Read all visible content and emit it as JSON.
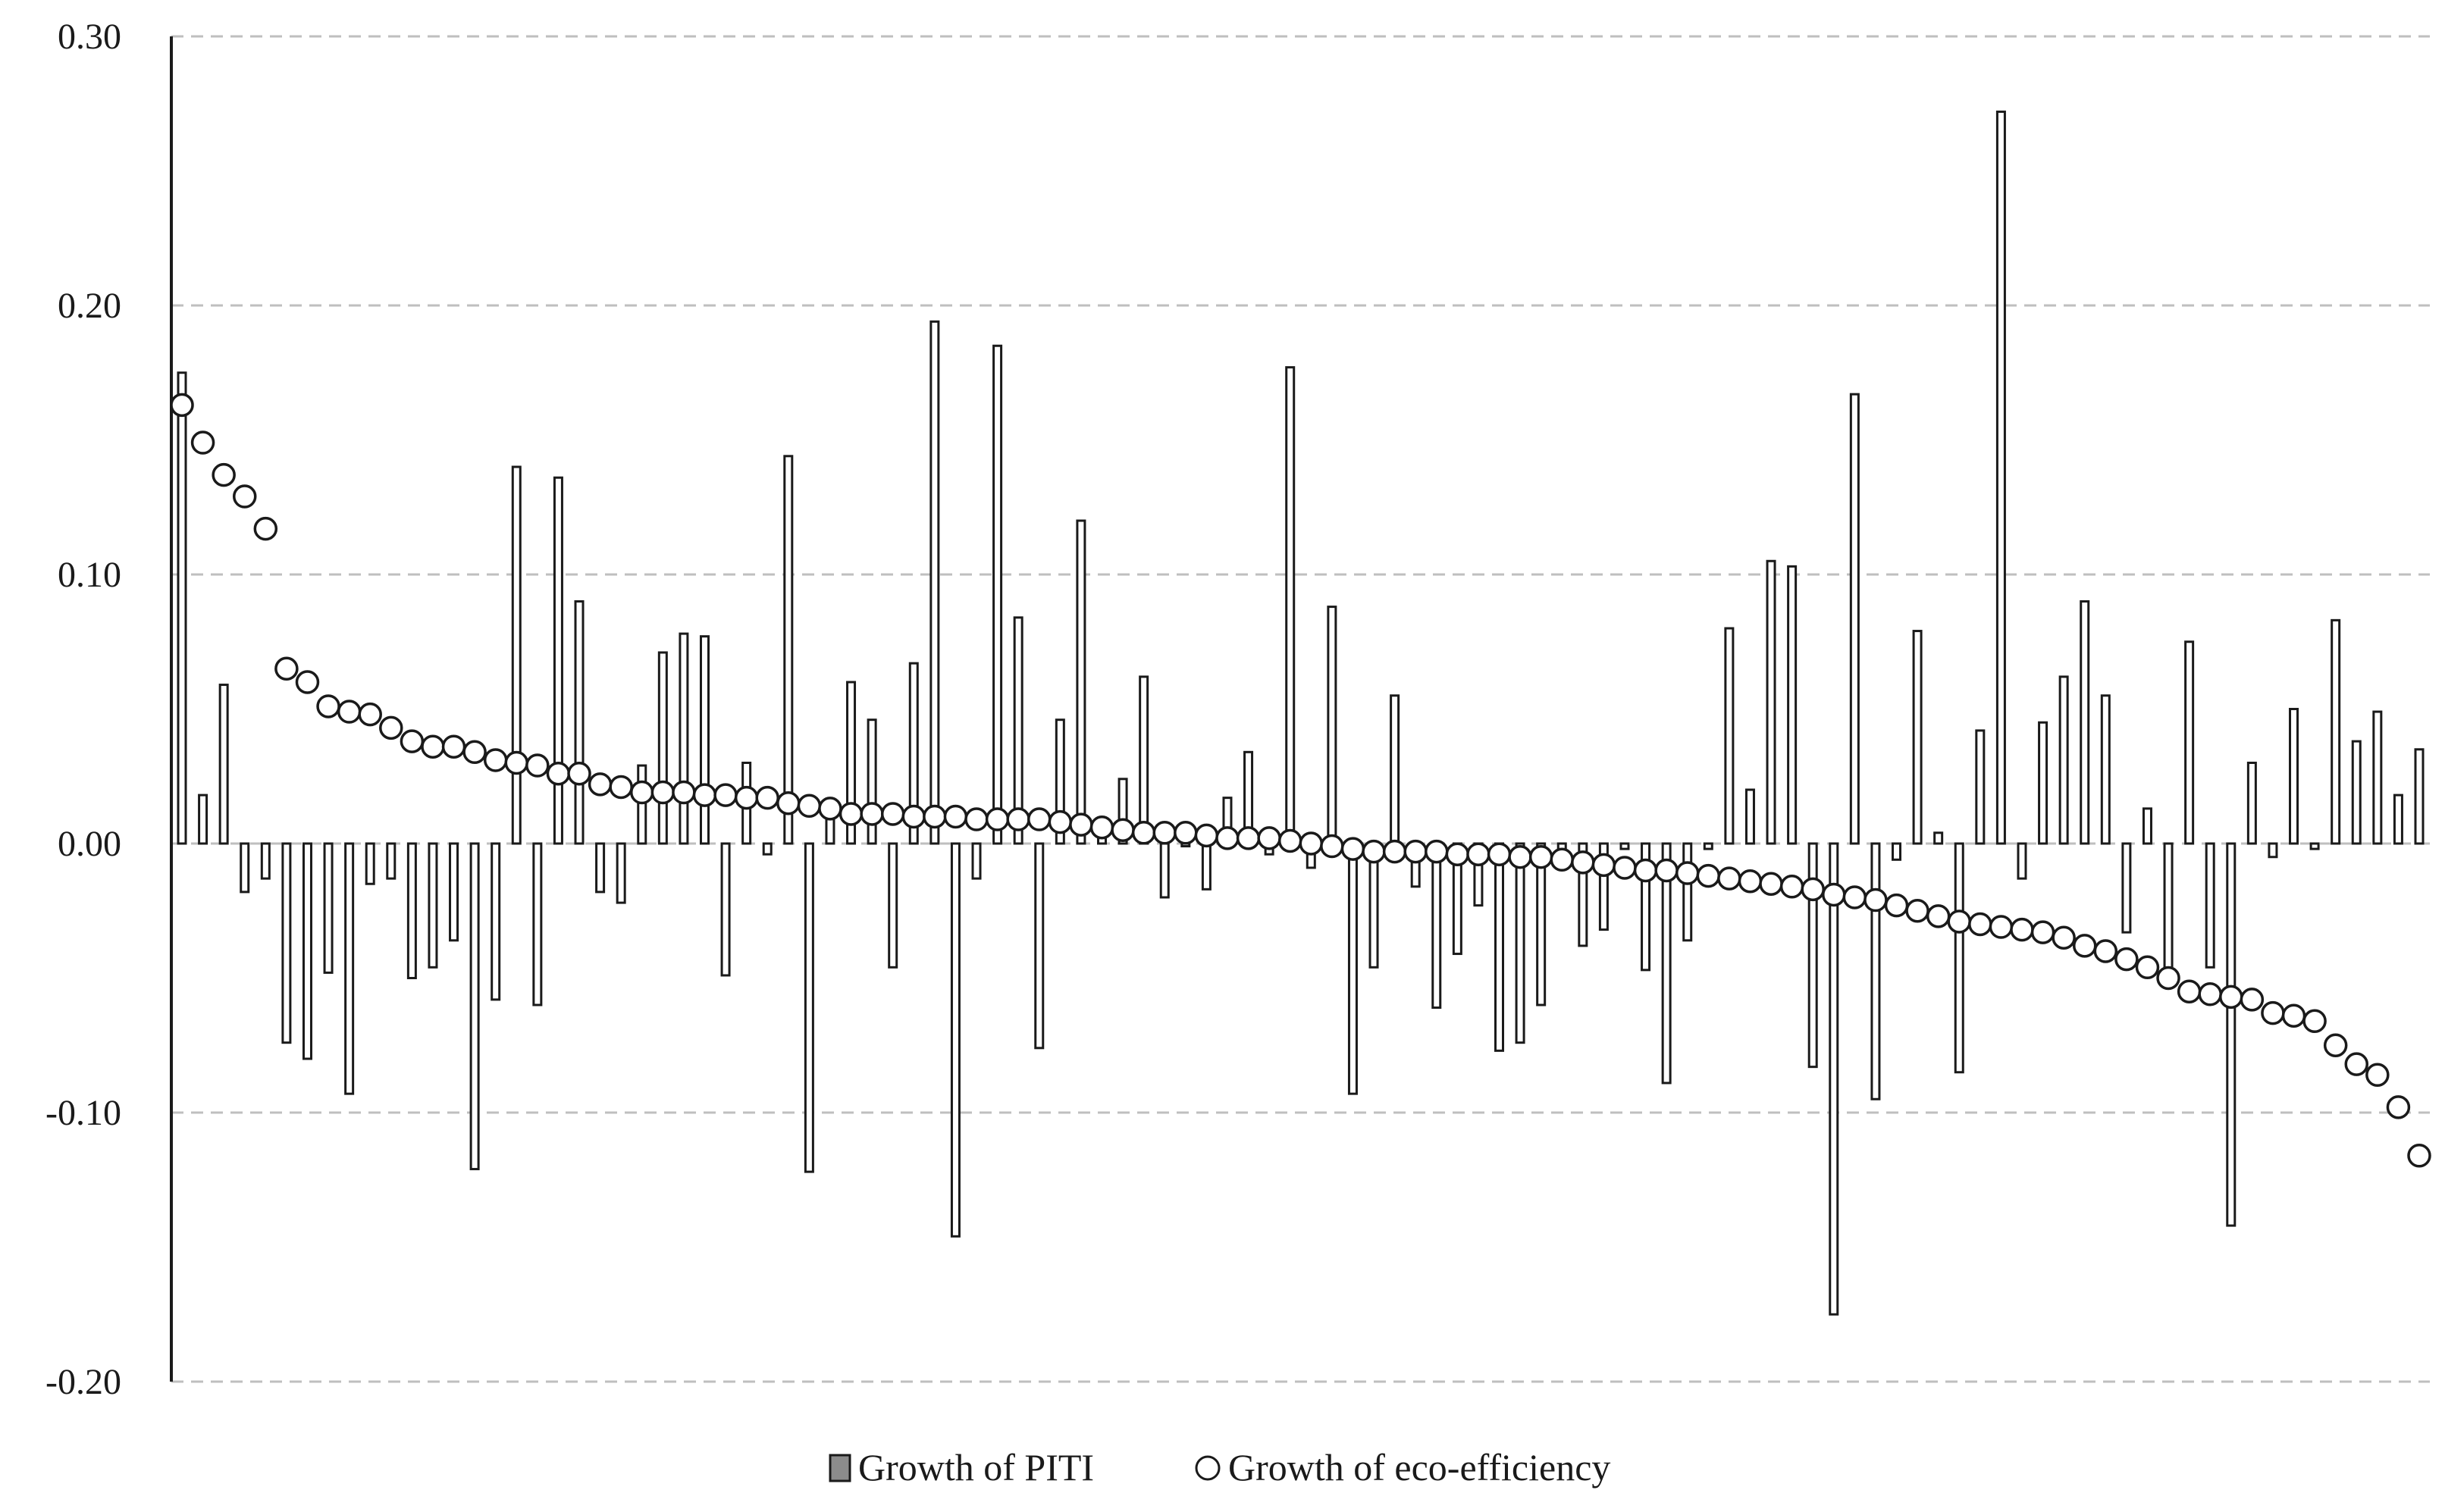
{
  "chart_data": {
    "type": "bar+scatter",
    "title": "",
    "xlabel": "",
    "ylabel": "",
    "ylim": [
      -0.2,
      0.3
    ],
    "y_ticks": [
      "0.30",
      "0.20",
      "0.10",
      "0.00",
      "-0.10",
      "-0.20"
    ],
    "y_tick_values": [
      0.3,
      0.2,
      0.1,
      0.0,
      -0.1,
      -0.2
    ],
    "grid": "dashed horizontal",
    "legend_position": "bottom-center",
    "series": [
      {
        "name": "Growth of PITI",
        "kind": "bar",
        "values": [
          0.175,
          0.018,
          0.059,
          -0.018,
          -0.013,
          -0.074,
          -0.08,
          -0.048,
          -0.093,
          -0.015,
          -0.013,
          -0.05,
          -0.046,
          -0.036,
          -0.121,
          -0.058,
          0.14,
          -0.06,
          0.136,
          0.09,
          -0.018,
          -0.022,
          0.029,
          0.071,
          0.078,
          0.077,
          -0.049,
          0.03,
          -0.004,
          0.144,
          -0.122,
          0.012,
          0.06,
          0.046,
          -0.046,
          0.067,
          0.194,
          -0.146,
          -0.013,
          0.185,
          0.084,
          -0.076,
          0.046,
          0.12,
          0.006,
          0.024,
          0.062,
          -0.02,
          -0.001,
          -0.017,
          0.017,
          0.034,
          -0.004,
          0.177,
          -0.009,
          0.088,
          -0.093,
          -0.046,
          0.055,
          -0.016,
          -0.061,
          -0.041,
          -0.023,
          -0.077,
          -0.074,
          -0.06,
          -0.003,
          -0.038,
          -0.032,
          -0.002,
          -0.047,
          -0.089,
          -0.036,
          -0.002,
          0.08,
          0.02,
          0.105,
          0.103,
          -0.083,
          -0.175,
          0.167,
          -0.095,
          -0.006,
          0.079,
          0.004,
          -0.085,
          0.042,
          0.272,
          -0.013,
          0.045,
          0.062,
          0.09,
          0.055,
          -0.033,
          0.013,
          -0.047,
          0.075,
          -0.046,
          -0.142,
          0.03,
          -0.005,
          0.05,
          -0.002,
          0.083,
          0.038,
          0.049,
          0.018,
          0.035
        ]
      },
      {
        "name": "Growth of eco-efficiency",
        "kind": "scatter",
        "values": [
          0.163,
          0.149,
          0.137,
          0.129,
          0.117,
          0.065,
          0.06,
          0.051,
          0.049,
          0.048,
          0.043,
          0.038,
          0.036,
          0.036,
          0.034,
          0.031,
          0.03,
          0.029,
          0.026,
          0.026,
          0.022,
          0.021,
          0.019,
          0.019,
          0.019,
          0.018,
          0.018,
          0.017,
          0.017,
          0.015,
          0.014,
          0.013,
          0.011,
          0.011,
          0.011,
          0.01,
          0.01,
          0.01,
          0.009,
          0.009,
          0.009,
          0.009,
          0.008,
          0.007,
          0.006,
          0.005,
          0.004,
          0.004,
          0.004,
          0.003,
          0.002,
          0.002,
          0.002,
          0.001,
          0.0,
          -0.001,
          -0.002,
          -0.003,
          -0.003,
          -0.003,
          -0.003,
          -0.004,
          -0.004,
          -0.004,
          -0.005,
          -0.005,
          -0.006,
          -0.007,
          -0.008,
          -0.009,
          -0.01,
          -0.01,
          -0.011,
          -0.012,
          -0.013,
          -0.014,
          -0.015,
          -0.016,
          -0.017,
          -0.019,
          -0.02,
          -0.021,
          -0.023,
          -0.025,
          -0.027,
          -0.029,
          -0.03,
          -0.031,
          -0.032,
          -0.033,
          -0.035,
          -0.038,
          -0.04,
          -0.043,
          -0.046,
          -0.05,
          -0.055,
          -0.056,
          -0.057,
          -0.058,
          -0.063,
          -0.064,
          -0.066,
          -0.075,
          -0.082,
          -0.086,
          -0.098,
          -0.116
        ]
      }
    ]
  },
  "legend": {
    "bar_label": "Growth of PITI",
    "circle_label": "Growth of eco-efficiency"
  },
  "colors": {
    "bar_fill": "#ffffff",
    "bar_stroke": "#1a1a1a",
    "marker_stroke": "#1a1a1a",
    "grid": "#bfbfbf",
    "axis": "#1a1a1a"
  }
}
